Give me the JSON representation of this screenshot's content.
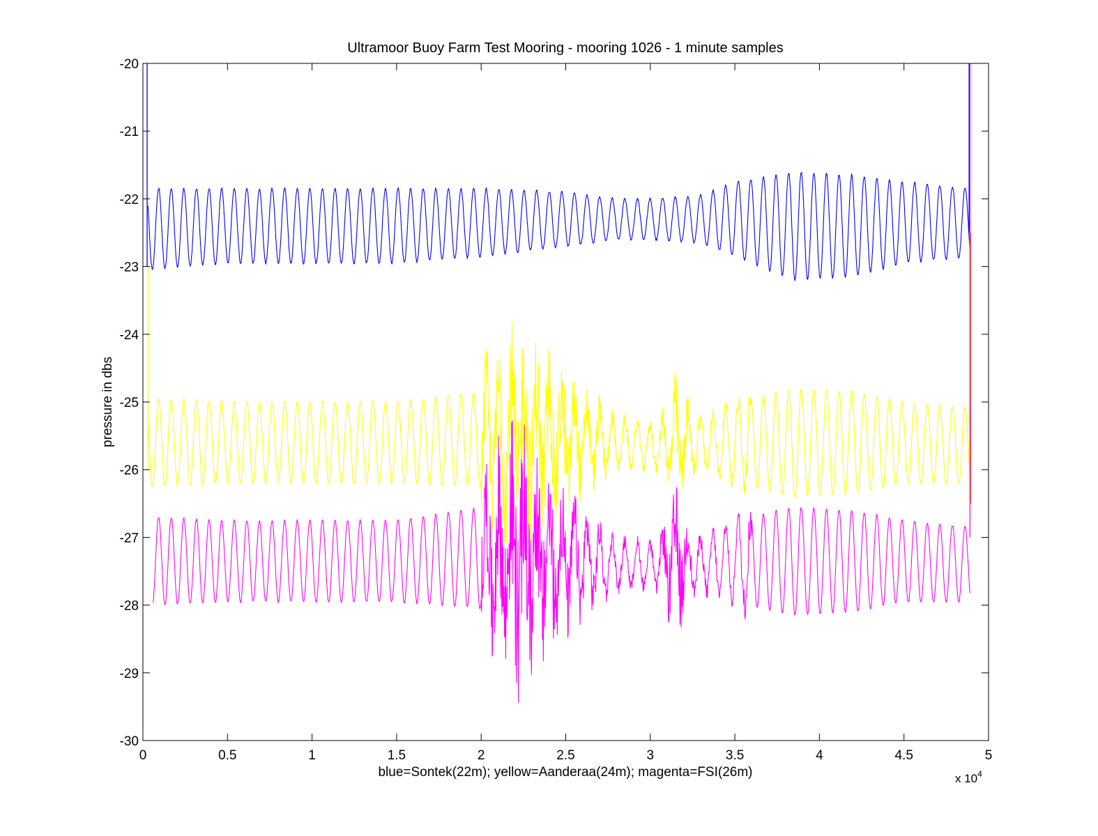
{
  "chart_data": {
    "type": "line",
    "title": "Ultramoor Buoy Farm Test Mooring - mooring 1026 - 1 minute samples",
    "xlabel": "blue=Sontek(22m); yellow=Aanderaa(24m); magenta=FSI(26m)",
    "ylabel": "pressure in dbs",
    "x_exponent_label": "x 10",
    "x_exponent_power": "4",
    "xlim": [
      0,
      50000
    ],
    "ylim": [
      -30,
      -20
    ],
    "x_ticks": [
      0,
      5000,
      10000,
      15000,
      20000,
      25000,
      30000,
      35000,
      40000,
      45000,
      50000
    ],
    "x_tick_labels": [
      "0",
      "0.5",
      "1",
      "1.5",
      "2",
      "2.5",
      "3",
      "3.5",
      "4",
      "4.5",
      "5"
    ],
    "y_ticks": [
      -20,
      -21,
      -22,
      -23,
      -24,
      -25,
      -26,
      -27,
      -28,
      -29,
      -30
    ],
    "y_tick_labels": [
      "-20",
      "-21",
      "-22",
      "-23",
      "-24",
      "-25",
      "-26",
      "-27",
      "-28",
      "-29",
      "-30"
    ],
    "grid": false,
    "legend": "none",
    "series": [
      {
        "color": "#0000ff",
        "x_start": 300,
        "x_end": 48900,
        "period": 745,
        "envelope_x": [
          300,
          5000,
          10000,
          15000,
          20000,
          25000,
          28000,
          30000,
          33000,
          35000,
          38500,
          42000,
          45000,
          48900
        ],
        "envelope_mean": [
          -22.45,
          -22.4,
          -22.4,
          -22.4,
          -22.35,
          -22.3,
          -22.3,
          -22.3,
          -22.3,
          -22.3,
          -22.4,
          -22.4,
          -22.35,
          -22.35
        ],
        "envelope_amp": [
          0.6,
          0.55,
          0.55,
          0.55,
          0.5,
          0.4,
          0.3,
          0.3,
          0.35,
          0.55,
          0.8,
          0.75,
          0.6,
          0.5
        ]
      },
      {
        "color": "#ffff00",
        "x_start": 300,
        "x_end": 48900,
        "period": 745,
        "envelope_x": [
          300,
          5000,
          10000,
          15000,
          20000,
          22000,
          25000,
          28000,
          30000,
          31500,
          33000,
          35000,
          38500,
          42000,
          45000,
          48900
        ],
        "envelope_mean": [
          -25.6,
          -25.6,
          -25.6,
          -25.6,
          -25.55,
          -25.5,
          -25.55,
          -25.6,
          -25.65,
          -25.6,
          -25.6,
          -25.6,
          -25.6,
          -25.6,
          -25.6,
          -25.65
        ],
        "envelope_amp": [
          0.65,
          0.6,
          0.6,
          0.6,
          0.7,
          0.8,
          0.6,
          0.35,
          0.3,
          0.5,
          0.35,
          0.6,
          0.8,
          0.75,
          0.6,
          0.55
        ],
        "noise_x": [
          20000,
          22000,
          24000,
          25500,
          28000,
          30500,
          31500,
          32500,
          35000,
          36000
        ],
        "noise_amp": [
          0.6,
          1.0,
          0.8,
          0.5,
          0.1,
          0.1,
          0.6,
          0.15,
          0.1,
          0.3
        ]
      },
      {
        "color": "#ff00ff",
        "x_start": 600,
        "x_end": 48900,
        "period": 745,
        "envelope_x": [
          600,
          5000,
          10000,
          15000,
          20000,
          22000,
          25000,
          28000,
          30000,
          31500,
          33000,
          35000,
          38500,
          42000,
          45000,
          48900
        ],
        "envelope_mean": [
          -27.35,
          -27.35,
          -27.35,
          -27.35,
          -27.3,
          -27.3,
          -27.35,
          -27.4,
          -27.4,
          -27.35,
          -27.4,
          -27.35,
          -27.35,
          -27.35,
          -27.35,
          -27.4
        ],
        "envelope_amp": [
          0.65,
          0.6,
          0.6,
          0.6,
          0.75,
          0.85,
          0.65,
          0.35,
          0.3,
          0.5,
          0.35,
          0.6,
          0.8,
          0.75,
          0.6,
          0.55
        ],
        "noise_x": [
          20000,
          22000,
          24000,
          25500,
          28000,
          30500,
          31500,
          32500,
          35000,
          36000
        ],
        "noise_amp": [
          0.7,
          1.4,
          0.9,
          0.5,
          0.1,
          0.1,
          0.8,
          0.15,
          0.1,
          0.35
        ]
      }
    ],
    "edge_spikes": [
      {
        "color": "#0000ff",
        "x": 250,
        "y_from": -20.0,
        "y_to": -23.0
      },
      {
        "color": "#ffff00",
        "x": 300,
        "y_from": -23.0,
        "y_to": -26.0
      },
      {
        "color": "#ff00ff",
        "x": 48900,
        "y_from": -20.0,
        "y_to": -27.0
      },
      {
        "color": "#0000ff",
        "x": 48850,
        "y_from": -20.0,
        "y_to": -22.5
      },
      {
        "color": "#ff6600",
        "x": 48950,
        "y_from": -22.5,
        "y_to": -26.5
      }
    ]
  }
}
